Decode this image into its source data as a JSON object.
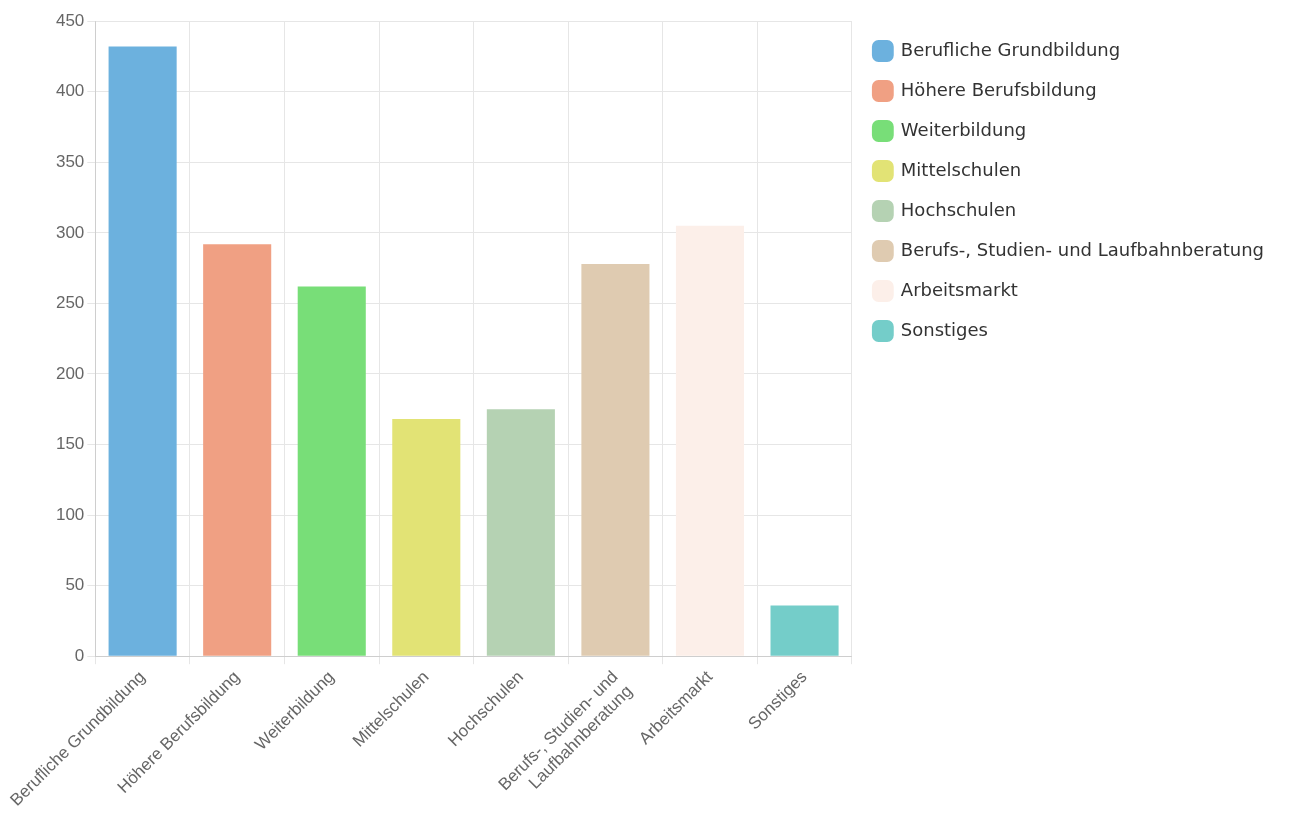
{
  "chart_data": {
    "type": "bar",
    "categories": [
      "Berufliche Grundbildung",
      "Höhere Berufsbildung",
      "Weiterbildung",
      "Mittelschulen",
      "Hochschulen",
      "Berufs-, Studien- und Laufbahnberatung",
      "Arbeitsmarkt",
      "Sonstiges"
    ],
    "series": [
      {
        "name": "Berufliche Grundbildung",
        "color": "#6cb1de",
        "values": [
          432,
          null,
          null,
          null,
          null,
          null,
          null,
          null
        ]
      },
      {
        "name": "Höhere Berufsbildung",
        "color": "#f0a083",
        "values": [
          null,
          292,
          null,
          null,
          null,
          null,
          null,
          null
        ]
      },
      {
        "name": "Weiterbildung",
        "color": "#78de78",
        "values": [
          null,
          null,
          262,
          null,
          null,
          null,
          null,
          null
        ]
      },
      {
        "name": "Mittelschulen",
        "color": "#e2e375",
        "values": [
          null,
          null,
          null,
          168,
          null,
          null,
          null,
          null
        ]
      },
      {
        "name": "Hochschulen",
        "color": "#b5d2b3",
        "values": [
          null,
          null,
          null,
          null,
          175,
          null,
          null,
          null
        ]
      },
      {
        "name": "Berufs-, Studien- und Laufbahnberatung",
        "color": "#dfcbb1",
        "values": [
          null,
          null,
          null,
          null,
          null,
          278,
          null,
          null
        ]
      },
      {
        "name": "Arbeitsmarkt",
        "color": "#fcefe9",
        "values": [
          null,
          null,
          null,
          null,
          null,
          null,
          305,
          null
        ]
      },
      {
        "name": "Sonstiges",
        "color": "#74cdc9",
        "values": [
          null,
          null,
          null,
          null,
          null,
          null,
          null,
          36
        ]
      }
    ],
    "ylim": [
      0,
      450
    ],
    "yticks": [
      0,
      50,
      100,
      150,
      200,
      250,
      300,
      350,
      400,
      450
    ],
    "grid": true,
    "legend": "right"
  }
}
